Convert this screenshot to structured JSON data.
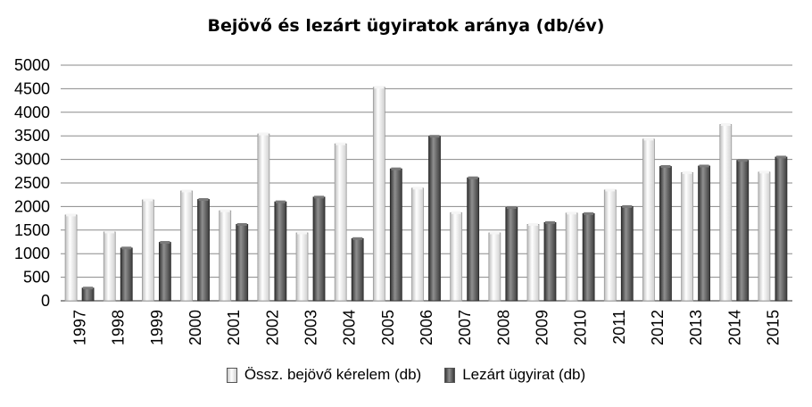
{
  "chart_data": {
    "type": "bar",
    "title": "Bejövő és lezárt ügyiratok aránya (db/év)",
    "categories": [
      "1997",
      "1998",
      "1999",
      "2000",
      "2001",
      "2002",
      "2003",
      "2004",
      "2005",
      "2006",
      "2007",
      "2008",
      "2009",
      "2010",
      "2011",
      "2012",
      "2013",
      "2014",
      "2015"
    ],
    "series": [
      {
        "name": "Össz. bejövő kérelem (db)",
        "color": "#e6e6e6",
        "values": [
          1820,
          1460,
          2140,
          2330,
          1910,
          3540,
          1440,
          3330,
          4530,
          2390,
          1870,
          1440,
          1620,
          1860,
          2350,
          3430,
          2720,
          3740,
          2730
        ]
      },
      {
        "name": "Lezárt ügyirat (db)",
        "color": "#5a5a5a",
        "values": [
          270,
          1120,
          1240,
          2150,
          1620,
          2100,
          2200,
          1320,
          2800,
          3490,
          2610,
          1980,
          1660,
          1850,
          2000,
          2850,
          2860,
          2980,
          3050
        ]
      }
    ],
    "ylim": [
      0,
      5000
    ],
    "yticks": [
      0,
      500,
      1000,
      1500,
      2000,
      2500,
      3000,
      3500,
      4000,
      4500,
      5000
    ],
    "grid": true,
    "legend_position": "bottom"
  }
}
